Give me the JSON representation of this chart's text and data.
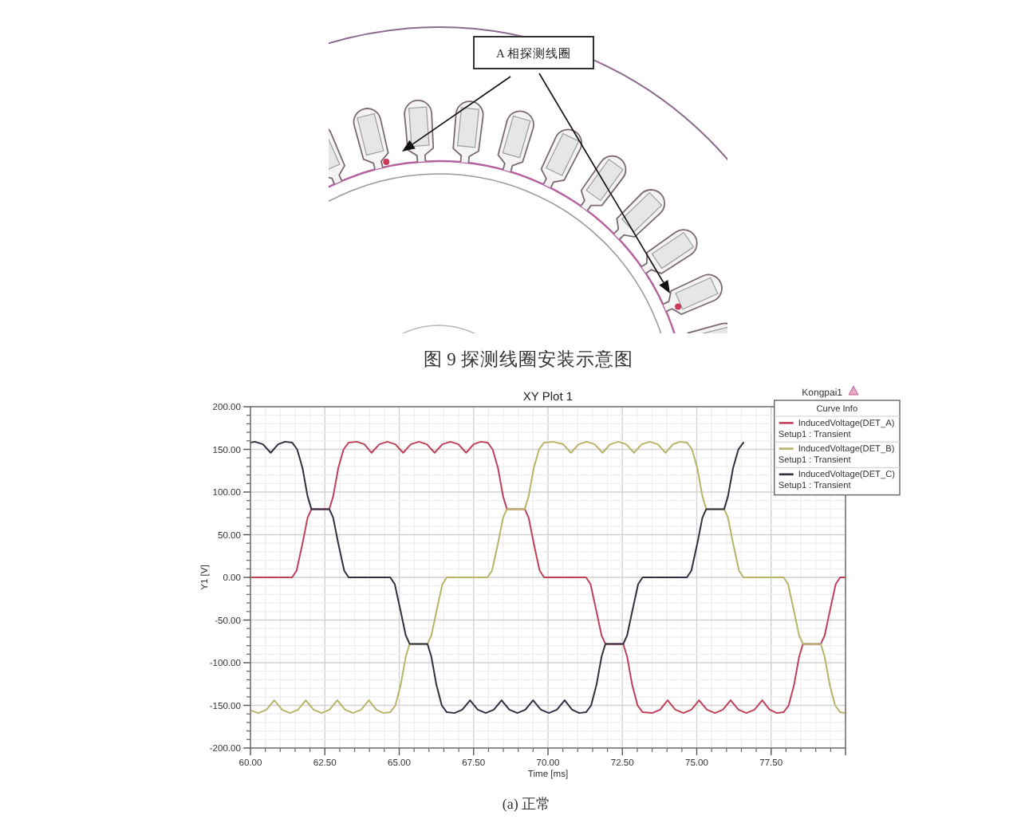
{
  "chart_data": {
    "type": "line",
    "title": "XY Plot 1",
    "xlabel": "Time [ms]",
    "ylabel": "Y1 [V]",
    "legend_title": "Curve Info",
    "annotations": [
      "Kongpai1",
      "A 相探测线圈",
      "图 9 探测线圈安装示意图",
      "(a) 正常"
    ],
    "xlim": [
      60,
      80
    ],
    "ylim": [
      -200,
      200
    ],
    "xticks": [
      {
        "value": 60,
        "label": "60.00"
      },
      {
        "value": 62.5,
        "label": "62.50"
      },
      {
        "value": 65,
        "label": "65.00"
      },
      {
        "value": 67.5,
        "label": "67.50"
      },
      {
        "value": 70,
        "label": "70.00"
      },
      {
        "value": 72.5,
        "label": "72.50"
      },
      {
        "value": 75,
        "label": "75.00"
      },
      {
        "value": 77.5,
        "label": "77.50"
      },
      {
        "value": 80,
        "label": null
      }
    ],
    "yticks": [
      {
        "value": -200,
        "label": "-200.00"
      },
      {
        "value": -150,
        "label": "-150.00"
      },
      {
        "value": -100,
        "label": "-100.00"
      },
      {
        "value": -50,
        "label": "-50.00"
      },
      {
        "value": 0,
        "label": "0.00"
      },
      {
        "value": 50,
        "label": "50.00"
      },
      {
        "value": 100,
        "label": "100.00"
      },
      {
        "value": 150,
        "label": "150.00"
      },
      {
        "value": 200,
        "label": "200.00"
      }
    ],
    "grid": true,
    "legend": "top right",
    "series": [
      {
        "name": "InducedVoltage(DET_A)\nSetup1 : Transient",
        "color": "#c0405a",
        "x": [
          60.0,
          61.4,
          61.55,
          61.75,
          61.92,
          62.05,
          62.65,
          62.78,
          62.95,
          63.13,
          63.3,
          63.58,
          63.83,
          64.07,
          64.33,
          64.6,
          64.87,
          65.13,
          65.39,
          65.66,
          65.93,
          66.19,
          66.45,
          66.72,
          66.99,
          67.25,
          67.5,
          67.74,
          67.97,
          68.14,
          68.32,
          68.49,
          68.62,
          69.22,
          69.35,
          69.52,
          69.72,
          69.87,
          71.28,
          71.43,
          71.63,
          71.8,
          71.93,
          72.53,
          72.66,
          72.83,
          73.01,
          73.18,
          73.5,
          73.77,
          74.02,
          74.28,
          74.55,
          74.82,
          75.08,
          75.34,
          75.61,
          75.88,
          76.14,
          76.4,
          76.67,
          76.94,
          77.2,
          77.45,
          77.69,
          77.92,
          78.09,
          78.27,
          78.44,
          78.57,
          79.17,
          79.3,
          79.47,
          79.67,
          79.82,
          80.0
        ],
        "values": [
          0,
          0,
          8,
          40,
          70,
          80,
          80,
          95,
          128,
          150,
          158,
          159,
          156,
          146,
          156,
          159,
          156,
          146,
          156,
          159,
          156,
          146,
          156,
          159,
          156,
          146,
          156,
          159,
          158,
          150,
          128,
          95,
          80,
          80,
          70,
          40,
          8,
          0,
          0,
          -8,
          -40,
          -68,
          -78,
          -78,
          -93,
          -126,
          -150,
          -158,
          -159,
          -155,
          -144,
          -155,
          -159,
          -155,
          -144,
          -155,
          -159,
          -155,
          -144,
          -155,
          -159,
          -155,
          -144,
          -155,
          -159,
          -158,
          -150,
          -126,
          -93,
          -78,
          -78,
          -68,
          -40,
          -8,
          0,
          0
        ]
      },
      {
        "name": "InducedVoltage(DET_B)\nSetup1 : Transient",
        "color": "#b8b46a",
        "x": [
          60.0,
          60.27,
          60.54,
          60.8,
          61.06,
          61.33,
          61.6,
          61.86,
          62.12,
          62.39,
          62.66,
          62.92,
          63.18,
          63.45,
          63.72,
          63.98,
          64.23,
          64.47,
          64.7,
          64.87,
          65.05,
          65.22,
          65.35,
          65.95,
          66.08,
          66.25,
          66.45,
          66.6,
          67.97,
          68.12,
          68.32,
          68.49,
          68.62,
          69.22,
          69.35,
          69.52,
          69.7,
          69.87,
          70.17,
          70.51,
          70.77,
          71.03,
          71.3,
          71.57,
          71.83,
          72.09,
          72.36,
          72.63,
          72.89,
          73.15,
          73.42,
          73.69,
          73.95,
          74.2,
          74.44,
          74.67,
          74.84,
          75.02,
          75.19,
          75.32,
          75.92,
          76.05,
          76.22,
          76.42,
          76.57,
          77.92,
          78.07,
          78.27,
          78.44,
          78.57,
          79.17,
          79.3,
          79.47,
          79.65,
          79.82,
          80.0
        ],
        "values": [
          -156,
          -159,
          -155,
          -144,
          -155,
          -159,
          -155,
          -144,
          -155,
          -159,
          -155,
          -144,
          -155,
          -159,
          -155,
          -144,
          -155,
          -159,
          -158,
          -150,
          -126,
          -93,
          -78,
          -78,
          -68,
          -40,
          -8,
          0,
          0,
          8,
          40,
          70,
          80,
          80,
          95,
          128,
          150,
          158,
          159,
          156,
          146,
          156,
          159,
          156,
          146,
          156,
          159,
          156,
          146,
          156,
          159,
          156,
          146,
          156,
          159,
          158,
          150,
          128,
          95,
          80,
          80,
          70,
          40,
          8,
          0,
          0,
          -8,
          -40,
          -68,
          -78,
          -78,
          -93,
          -126,
          -150,
          -158,
          -159
        ]
      },
      {
        "name": "InducedVoltage(DET_C)\nSetup1 : Transient",
        "color": "#303040",
        "x": [
          60.0,
          60.15,
          60.42,
          60.68,
          60.93,
          61.16,
          61.4,
          61.57,
          61.75,
          61.92,
          62.05,
          62.65,
          62.78,
          62.95,
          63.15,
          63.3,
          64.7,
          64.85,
          65.05,
          65.22,
          65.35,
          65.95,
          66.08,
          66.25,
          66.43,
          66.6,
          66.86,
          67.12,
          67.38,
          67.64,
          67.91,
          68.18,
          68.44,
          68.7,
          68.97,
          69.24,
          69.5,
          69.76,
          70.03,
          70.3,
          70.56,
          70.81,
          71.05,
          71.28,
          71.45,
          71.63,
          71.8,
          71.93,
          72.53,
          72.66,
          72.83,
          73.03,
          73.18,
          74.67,
          74.82,
          75.02,
          75.19,
          75.32,
          75.92,
          76.05,
          76.22,
          76.4,
          76.57
        ],
        "values": [
          158,
          159,
          156,
          146,
          156,
          159,
          158,
          150,
          128,
          95,
          80,
          80,
          70,
          40,
          8,
          0,
          0,
          -8,
          -40,
          -68,
          -78,
          -78,
          -93,
          -126,
          -150,
          -158,
          -159,
          -155,
          -144,
          -155,
          -159,
          -155,
          -144,
          -155,
          -159,
          -155,
          -144,
          -155,
          -159,
          -155,
          -144,
          -155,
          -159,
          -158,
          -150,
          -126,
          -93,
          -78,
          -78,
          -68,
          -40,
          -8,
          0,
          0,
          8,
          40,
          70,
          80,
          80,
          95,
          128,
          150,
          158
        ]
      }
    ]
  }
}
